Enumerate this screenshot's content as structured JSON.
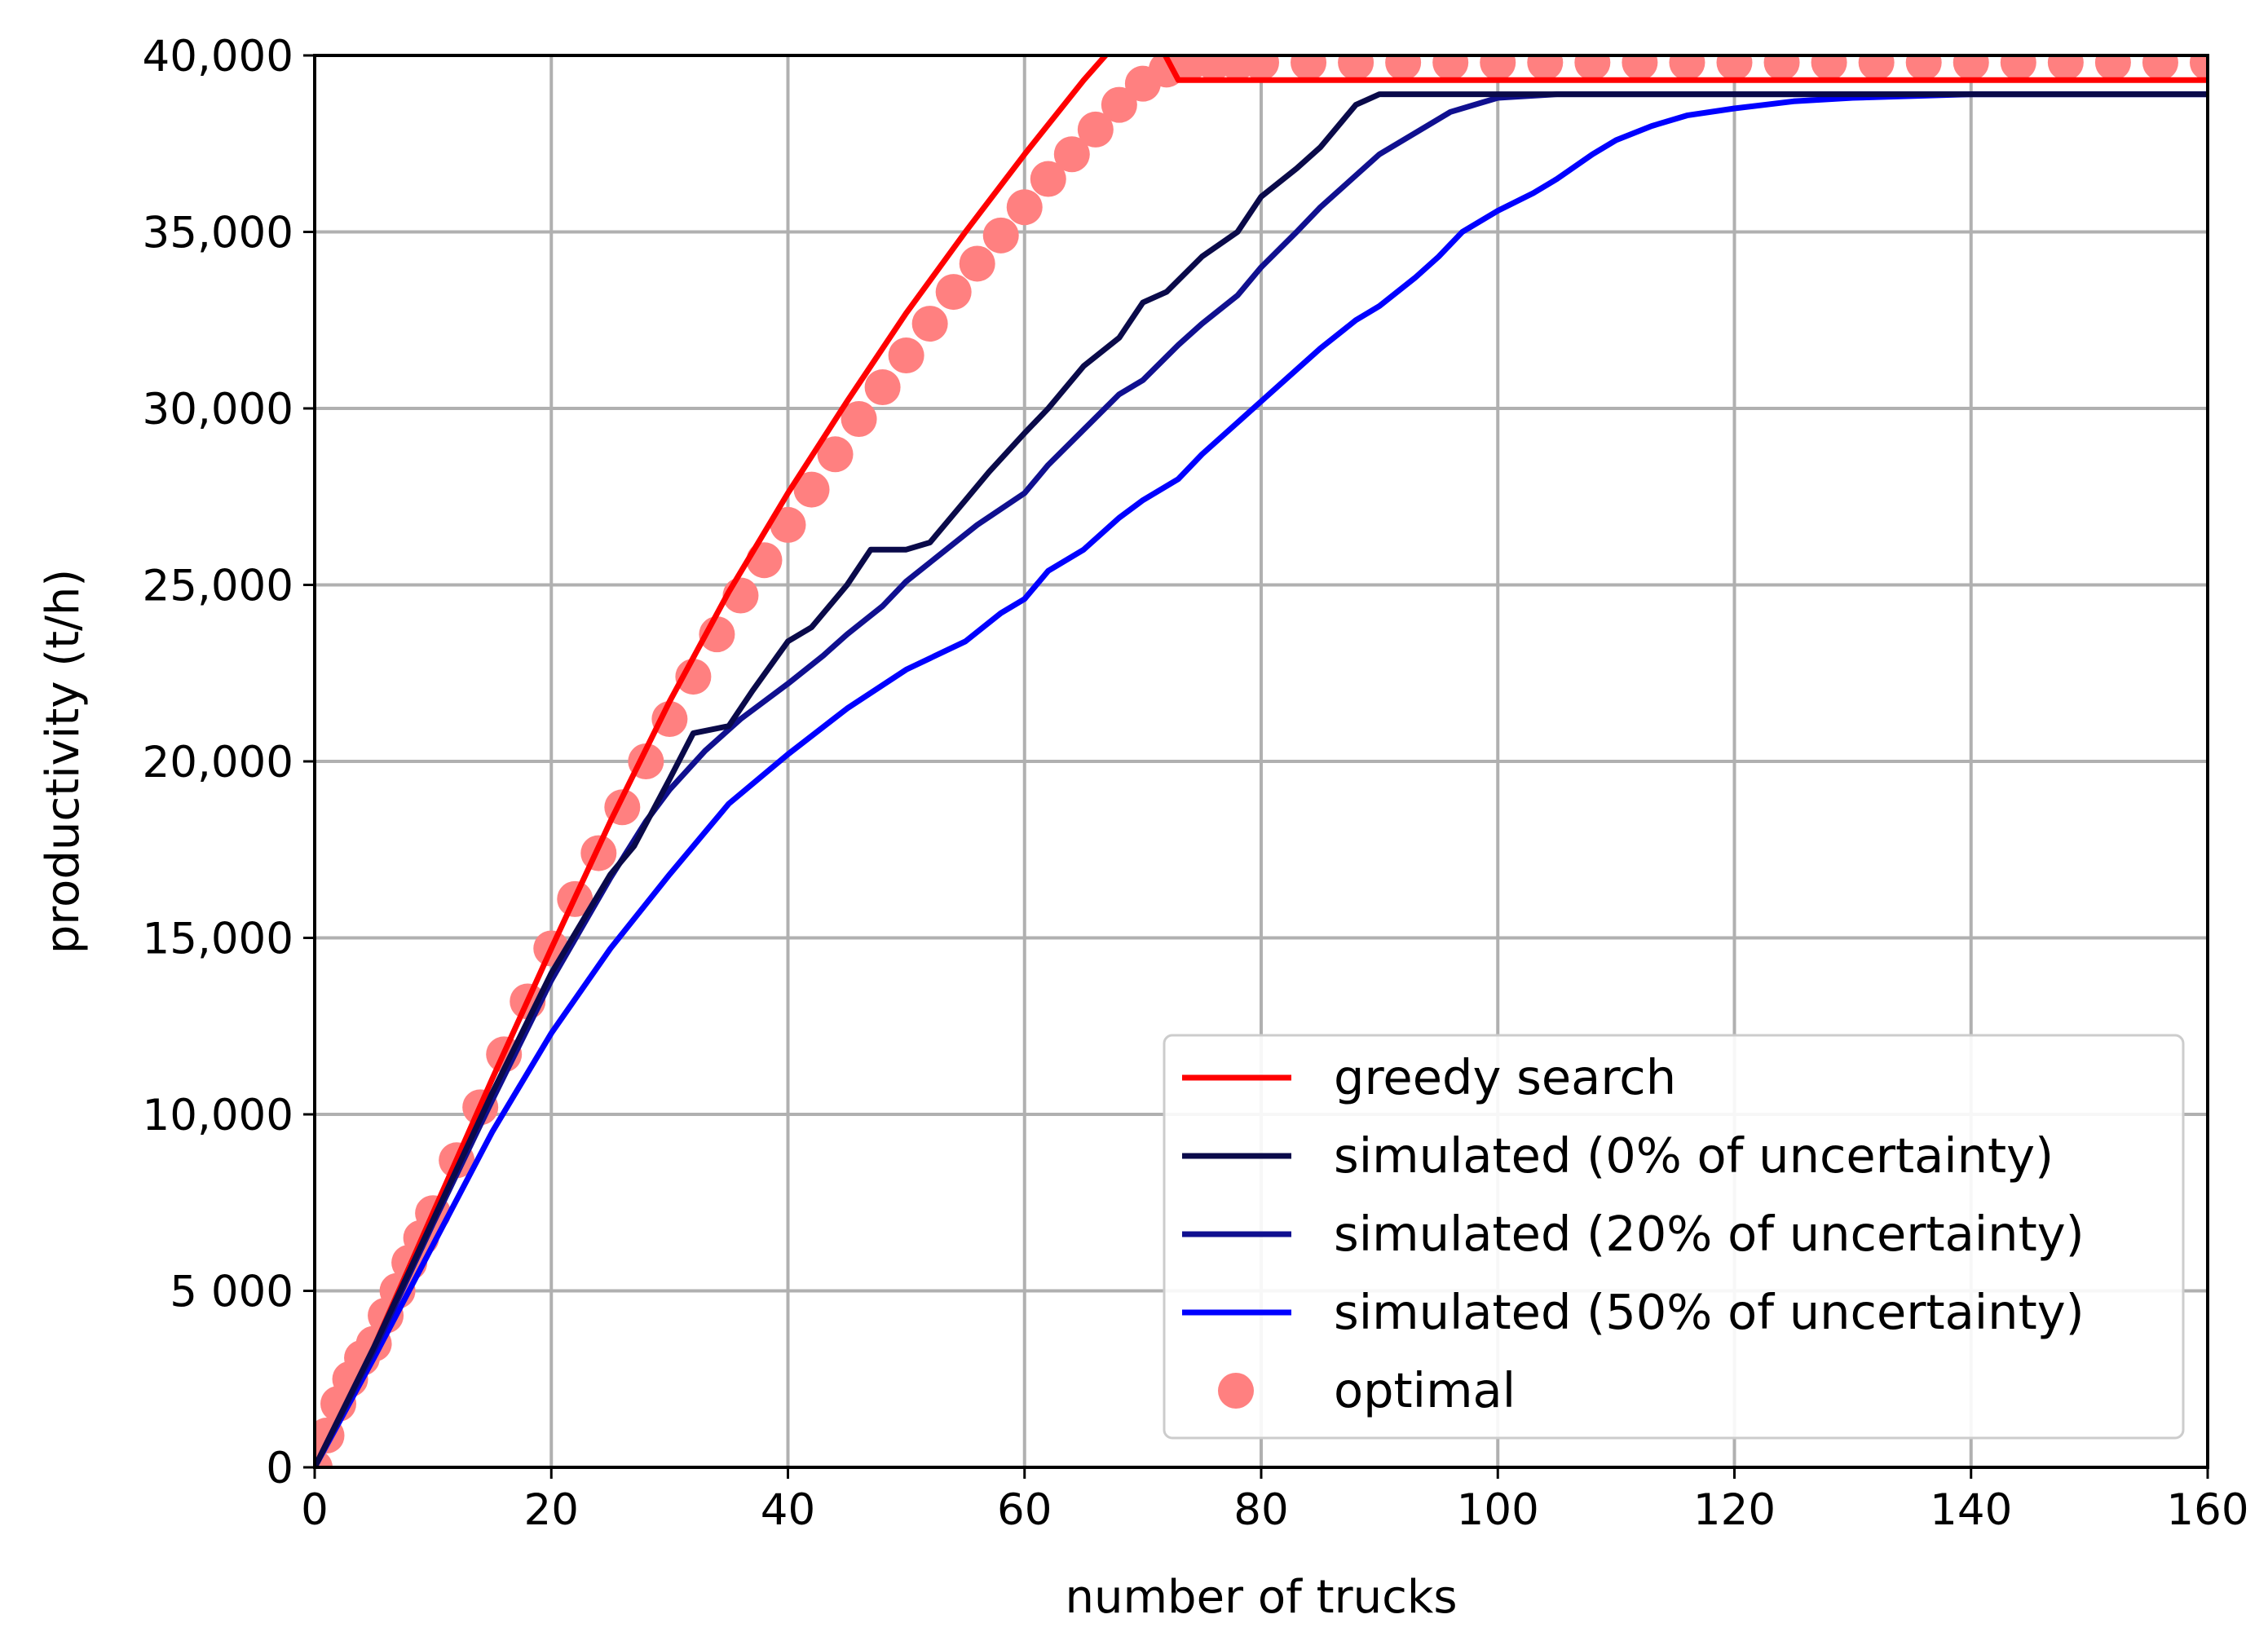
{
  "chart_data": {
    "type": "line",
    "title": "",
    "xlabel": "number of trucks",
    "ylabel": "productivity (t/h)",
    "xlim": [
      0,
      160
    ],
    "ylim": [
      0,
      40000
    ],
    "grid": true,
    "legend_position": "bottom-right",
    "x_ticks": [
      0,
      20,
      40,
      60,
      80,
      100,
      120,
      140,
      160
    ],
    "x_tick_labels": [
      "0",
      "20",
      "40",
      "60",
      "80",
      "100",
      "120",
      "140",
      "160"
    ],
    "y_ticks": [
      0,
      5000,
      10000,
      15000,
      20000,
      25000,
      30000,
      35000,
      40000
    ],
    "y_tick_labels": [
      "0",
      "5 000",
      "10,000",
      "15,000",
      "20,000",
      "25,000",
      "30,000",
      "35,000",
      "40,000"
    ],
    "series": [
      {
        "name": "greedy search",
        "kind": "line",
        "color": "#ff0000",
        "points": [
          [
            0,
            0
          ],
          [
            5,
            3400
          ],
          [
            10,
            7200
          ],
          [
            15,
            11000
          ],
          [
            20,
            14700
          ],
          [
            25,
            18300
          ],
          [
            30,
            21700
          ],
          [
            35,
            24800
          ],
          [
            40,
            27600
          ],
          [
            45,
            30200
          ],
          [
            50,
            32700
          ],
          [
            55,
            35000
          ],
          [
            60,
            37200
          ],
          [
            65,
            39300
          ],
          [
            70,
            41200
          ],
          [
            73,
            39300
          ],
          [
            80,
            39300
          ],
          [
            100,
            39300
          ],
          [
            120,
            39300
          ],
          [
            140,
            39300
          ],
          [
            160,
            39300
          ]
        ]
      },
      {
        "name": "simulated (0% of uncertainty)",
        "kind": "line",
        "color": "#0a0a4a",
        "points": [
          [
            0,
            0
          ],
          [
            5,
            3400
          ],
          [
            10,
            7000
          ],
          [
            15,
            10600
          ],
          [
            20,
            14000
          ],
          [
            25,
            16800
          ],
          [
            27,
            17600
          ],
          [
            30,
            19500
          ],
          [
            32,
            20800
          ],
          [
            35,
            21000
          ],
          [
            37,
            22000
          ],
          [
            40,
            23400
          ],
          [
            42,
            23800
          ],
          [
            45,
            25000
          ],
          [
            47,
            26000
          ],
          [
            50,
            26000
          ],
          [
            52,
            26200
          ],
          [
            55,
            27400
          ],
          [
            57,
            28200
          ],
          [
            60,
            29300
          ],
          [
            62,
            30000
          ],
          [
            65,
            31200
          ],
          [
            68,
            32000
          ],
          [
            70,
            33000
          ],
          [
            72,
            33300
          ],
          [
            75,
            34300
          ],
          [
            78,
            35000
          ],
          [
            80,
            36000
          ],
          [
            83,
            36800
          ],
          [
            85,
            37400
          ],
          [
            88,
            38600
          ],
          [
            90,
            38900
          ],
          [
            100,
            38900
          ],
          [
            120,
            38900
          ],
          [
            140,
            38900
          ],
          [
            160,
            38900
          ]
        ]
      },
      {
        "name": "simulated (20% of uncertainty)",
        "kind": "line",
        "color": "#101090",
        "points": [
          [
            0,
            0
          ],
          [
            5,
            3300
          ],
          [
            10,
            6900
          ],
          [
            15,
            10400
          ],
          [
            20,
            13800
          ],
          [
            25,
            16700
          ],
          [
            28,
            18300
          ],
          [
            30,
            19200
          ],
          [
            33,
            20300
          ],
          [
            36,
            21200
          ],
          [
            40,
            22200
          ],
          [
            43,
            23000
          ],
          [
            45,
            23600
          ],
          [
            48,
            24400
          ],
          [
            50,
            25100
          ],
          [
            53,
            25900
          ],
          [
            56,
            26700
          ],
          [
            60,
            27600
          ],
          [
            62,
            28400
          ],
          [
            65,
            29400
          ],
          [
            68,
            30400
          ],
          [
            70,
            30800
          ],
          [
            73,
            31800
          ],
          [
            75,
            32400
          ],
          [
            78,
            33200
          ],
          [
            80,
            34000
          ],
          [
            83,
            35000
          ],
          [
            85,
            35700
          ],
          [
            88,
            36600
          ],
          [
            90,
            37200
          ],
          [
            93,
            37800
          ],
          [
            96,
            38400
          ],
          [
            100,
            38800
          ],
          [
            105,
            38900
          ],
          [
            120,
            38900
          ],
          [
            140,
            38900
          ],
          [
            160,
            38900
          ]
        ]
      },
      {
        "name": "simulated (50% of uncertainty)",
        "kind": "line",
        "color": "#0000ff",
        "points": [
          [
            0,
            0
          ],
          [
            5,
            3100
          ],
          [
            10,
            6300
          ],
          [
            15,
            9500
          ],
          [
            20,
            12300
          ],
          [
            25,
            14700
          ],
          [
            30,
            16800
          ],
          [
            35,
            18800
          ],
          [
            40,
            20200
          ],
          [
            45,
            21500
          ],
          [
            50,
            22600
          ],
          [
            55,
            23400
          ],
          [
            58,
            24200
          ],
          [
            60,
            24600
          ],
          [
            62,
            25400
          ],
          [
            65,
            26000
          ],
          [
            68,
            26900
          ],
          [
            70,
            27400
          ],
          [
            73,
            28000
          ],
          [
            75,
            28700
          ],
          [
            78,
            29600
          ],
          [
            80,
            30200
          ],
          [
            83,
            31100
          ],
          [
            85,
            31700
          ],
          [
            88,
            32500
          ],
          [
            90,
            32900
          ],
          [
            93,
            33700
          ],
          [
            95,
            34300
          ],
          [
            97,
            35000
          ],
          [
            100,
            35600
          ],
          [
            103,
            36100
          ],
          [
            105,
            36500
          ],
          [
            108,
            37200
          ],
          [
            110,
            37600
          ],
          [
            113,
            38000
          ],
          [
            116,
            38300
          ],
          [
            120,
            38500
          ],
          [
            125,
            38700
          ],
          [
            130,
            38800
          ],
          [
            140,
            38900
          ],
          [
            150,
            38900
          ],
          [
            160,
            38900
          ]
        ]
      },
      {
        "name": "optimal",
        "kind": "scatter",
        "color": "#ff8080",
        "points": [
          [
            0,
            0
          ],
          [
            1,
            900
          ],
          [
            2,
            1800
          ],
          [
            3,
            2500
          ],
          [
            4,
            3100
          ],
          [
            5,
            3500
          ],
          [
            6,
            4300
          ],
          [
            7,
            5000
          ],
          [
            8,
            5800
          ],
          [
            9,
            6500
          ],
          [
            10,
            7200
          ],
          [
            12,
            8700
          ],
          [
            14,
            10200
          ],
          [
            16,
            11700
          ],
          [
            18,
            13200
          ],
          [
            20,
            14700
          ],
          [
            22,
            16100
          ],
          [
            24,
            17400
          ],
          [
            26,
            18700
          ],
          [
            28,
            20000
          ],
          [
            30,
            21200
          ],
          [
            32,
            22400
          ],
          [
            34,
            23600
          ],
          [
            36,
            24700
          ],
          [
            38,
            25700
          ],
          [
            40,
            26700
          ],
          [
            42,
            27700
          ],
          [
            44,
            28700
          ],
          [
            46,
            29700
          ],
          [
            48,
            30600
          ],
          [
            50,
            31500
          ],
          [
            52,
            32400
          ],
          [
            54,
            33300
          ],
          [
            56,
            34100
          ],
          [
            58,
            34900
          ],
          [
            60,
            35700
          ],
          [
            62,
            36500
          ],
          [
            64,
            37200
          ],
          [
            66,
            37900
          ],
          [
            68,
            38600
          ],
          [
            70,
            39200
          ],
          [
            72,
            39600
          ],
          [
            74,
            39800
          ],
          [
            76,
            39800
          ],
          [
            78,
            39800
          ],
          [
            80,
            39800
          ],
          [
            84,
            39800
          ],
          [
            88,
            39800
          ],
          [
            92,
            39800
          ],
          [
            96,
            39800
          ],
          [
            100,
            39800
          ],
          [
            104,
            39800
          ],
          [
            108,
            39800
          ],
          [
            112,
            39800
          ],
          [
            116,
            39800
          ],
          [
            120,
            39800
          ],
          [
            124,
            39800
          ],
          [
            128,
            39800
          ],
          [
            132,
            39800
          ],
          [
            136,
            39800
          ],
          [
            140,
            39800
          ],
          [
            144,
            39800
          ],
          [
            148,
            39800
          ],
          [
            152,
            39800
          ],
          [
            156,
            39800
          ],
          [
            160,
            39800
          ]
        ]
      }
    ]
  }
}
